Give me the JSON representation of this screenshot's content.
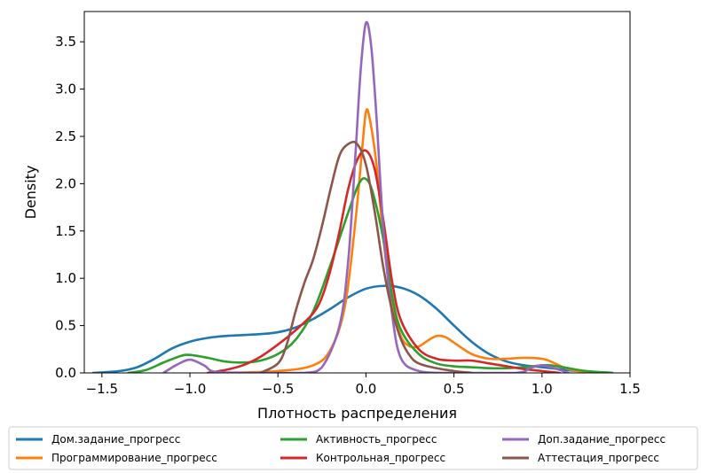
{
  "chart_data": {
    "type": "line",
    "title": "",
    "xlabel": "Плотность распределения",
    "ylabel": "Density",
    "xlim": [
      -1.6,
      1.5
    ],
    "ylim": [
      0.0,
      3.82
    ],
    "xticks": [
      -1.5,
      -1.0,
      -0.5,
      0.0,
      0.5,
      1.0,
      1.5
    ],
    "xtick_labels": [
      "−1.5",
      "−1.0",
      "−0.5",
      "0.0",
      "0.5",
      "1.0",
      "1.5"
    ],
    "yticks": [
      0.0,
      0.5,
      1.0,
      1.5,
      2.0,
      2.5,
      3.0,
      3.5
    ],
    "ytick_labels": [
      "0.0",
      "0.5",
      "1.0",
      "1.5",
      "2.0",
      "2.5",
      "3.0",
      "3.5"
    ],
    "grid": false,
    "legend_position": "bottom",
    "series": [
      {
        "name": "Дом.задание_прогресс",
        "color": "#1f77b4",
        "points": [
          [
            -1.55,
            0.0
          ],
          [
            -1.4,
            0.02
          ],
          [
            -1.3,
            0.06
          ],
          [
            -1.2,
            0.15
          ],
          [
            -1.1,
            0.26
          ],
          [
            -1.0,
            0.33
          ],
          [
            -0.9,
            0.37
          ],
          [
            -0.8,
            0.39
          ],
          [
            -0.7,
            0.4
          ],
          [
            -0.6,
            0.41
          ],
          [
            -0.5,
            0.43
          ],
          [
            -0.4,
            0.48
          ],
          [
            -0.3,
            0.57
          ],
          [
            -0.2,
            0.68
          ],
          [
            -0.1,
            0.8
          ],
          [
            0.0,
            0.89
          ],
          [
            0.1,
            0.92
          ],
          [
            0.2,
            0.9
          ],
          [
            0.3,
            0.82
          ],
          [
            0.4,
            0.68
          ],
          [
            0.5,
            0.5
          ],
          [
            0.6,
            0.33
          ],
          [
            0.7,
            0.2
          ],
          [
            0.8,
            0.12
          ],
          [
            0.9,
            0.08
          ],
          [
            1.0,
            0.06
          ],
          [
            1.1,
            0.04
          ],
          [
            1.2,
            0.02
          ],
          [
            1.4,
            0.0
          ]
        ]
      },
      {
        "name": "Программирование_прогресс",
        "color": "#ff7f0e",
        "points": [
          [
            -0.8,
            0.0
          ],
          [
            -0.5,
            0.02
          ],
          [
            -0.3,
            0.08
          ],
          [
            -0.2,
            0.25
          ],
          [
            -0.12,
            0.7
          ],
          [
            -0.06,
            1.6
          ],
          [
            -0.02,
            2.4
          ],
          [
            0.0,
            2.76
          ],
          [
            0.02,
            2.7
          ],
          [
            0.06,
            2.2
          ],
          [
            0.1,
            1.4
          ],
          [
            0.15,
            0.7
          ],
          [
            0.2,
            0.38
          ],
          [
            0.25,
            0.28
          ],
          [
            0.3,
            0.28
          ],
          [
            0.35,
            0.34
          ],
          [
            0.4,
            0.39
          ],
          [
            0.45,
            0.38
          ],
          [
            0.5,
            0.32
          ],
          [
            0.6,
            0.2
          ],
          [
            0.7,
            0.15
          ],
          [
            0.8,
            0.15
          ],
          [
            0.9,
            0.16
          ],
          [
            1.0,
            0.15
          ],
          [
            1.05,
            0.12
          ],
          [
            1.15,
            0.04
          ],
          [
            1.25,
            0.01
          ],
          [
            1.3,
            0.0
          ]
        ]
      },
      {
        "name": "Активность_прогресс",
        "color": "#2ca02c",
        "points": [
          [
            -1.35,
            0.0
          ],
          [
            -1.25,
            0.03
          ],
          [
            -1.15,
            0.11
          ],
          [
            -1.05,
            0.18
          ],
          [
            -1.0,
            0.19
          ],
          [
            -0.9,
            0.16
          ],
          [
            -0.8,
            0.12
          ],
          [
            -0.7,
            0.11
          ],
          [
            -0.6,
            0.13
          ],
          [
            -0.5,
            0.2
          ],
          [
            -0.4,
            0.35
          ],
          [
            -0.3,
            0.65
          ],
          [
            -0.2,
            1.15
          ],
          [
            -0.1,
            1.7
          ],
          [
            -0.04,
            2.0
          ],
          [
            0.0,
            2.05
          ],
          [
            0.04,
            1.9
          ],
          [
            0.1,
            1.4
          ],
          [
            0.15,
            0.8
          ],
          [
            0.2,
            0.45
          ],
          [
            0.3,
            0.2
          ],
          [
            0.4,
            0.1
          ],
          [
            0.5,
            0.07
          ],
          [
            0.6,
            0.06
          ],
          [
            0.7,
            0.05
          ],
          [
            0.8,
            0.05
          ],
          [
            0.9,
            0.06
          ],
          [
            1.0,
            0.08
          ],
          [
            1.05,
            0.08
          ],
          [
            1.15,
            0.05
          ],
          [
            1.25,
            0.02
          ],
          [
            1.4,
            0.0
          ]
        ]
      },
      {
        "name": "Контрольная_прогресс",
        "color": "#d62728",
        "points": [
          [
            -0.9,
            0.0
          ],
          [
            -0.8,
            0.03
          ],
          [
            -0.7,
            0.08
          ],
          [
            -0.6,
            0.17
          ],
          [
            -0.5,
            0.3
          ],
          [
            -0.4,
            0.45
          ],
          [
            -0.3,
            0.63
          ],
          [
            -0.25,
            0.8
          ],
          [
            -0.2,
            1.1
          ],
          [
            -0.15,
            1.5
          ],
          [
            -0.1,
            1.95
          ],
          [
            -0.05,
            2.25
          ],
          [
            0.0,
            2.35
          ],
          [
            0.05,
            2.15
          ],
          [
            0.1,
            1.6
          ],
          [
            0.15,
            0.95
          ],
          [
            0.2,
            0.55
          ],
          [
            0.3,
            0.25
          ],
          [
            0.4,
            0.15
          ],
          [
            0.5,
            0.13
          ],
          [
            0.6,
            0.13
          ],
          [
            0.7,
            0.1
          ],
          [
            0.8,
            0.07
          ],
          [
            0.9,
            0.04
          ],
          [
            1.0,
            0.02
          ],
          [
            1.1,
            0.0
          ]
        ]
      },
      {
        "name": "Доп.задание_прогресс",
        "color": "#9467bd",
        "points": [
          [
            -1.15,
            0.0
          ],
          [
            -1.08,
            0.08
          ],
          [
            -1.0,
            0.14
          ],
          [
            -0.92,
            0.08
          ],
          [
            -0.85,
            0.01
          ],
          [
            -0.6,
            0.0
          ],
          [
            -0.35,
            0.0
          ],
          [
            -0.25,
            0.06
          ],
          [
            -0.15,
            0.5
          ],
          [
            -0.1,
            1.2
          ],
          [
            -0.06,
            2.3
          ],
          [
            -0.03,
            3.2
          ],
          [
            0.0,
            3.7
          ],
          [
            0.03,
            3.45
          ],
          [
            0.06,
            2.7
          ],
          [
            0.1,
            1.5
          ],
          [
            0.15,
            0.6
          ],
          [
            0.2,
            0.15
          ],
          [
            0.3,
            0.02
          ],
          [
            0.45,
            0.0
          ],
          [
            0.85,
            0.0
          ],
          [
            0.93,
            0.05
          ],
          [
            1.0,
            0.08
          ],
          [
            1.07,
            0.05
          ],
          [
            1.15,
            0.0
          ]
        ]
      },
      {
        "name": "Аттестация_прогресс",
        "color": "#8c564b",
        "points": [
          [
            -0.6,
            0.0
          ],
          [
            -0.5,
            0.1
          ],
          [
            -0.45,
            0.3
          ],
          [
            -0.4,
            0.65
          ],
          [
            -0.35,
            0.95
          ],
          [
            -0.3,
            1.2
          ],
          [
            -0.25,
            1.55
          ],
          [
            -0.2,
            1.95
          ],
          [
            -0.15,
            2.3
          ],
          [
            -0.1,
            2.42
          ],
          [
            -0.05,
            2.42
          ],
          [
            0.0,
            2.2
          ],
          [
            0.05,
            1.7
          ],
          [
            0.1,
            1.1
          ],
          [
            0.15,
            0.65
          ],
          [
            0.2,
            0.35
          ],
          [
            0.25,
            0.18
          ],
          [
            0.3,
            0.1
          ],
          [
            0.4,
            0.05
          ],
          [
            0.5,
            0.02
          ],
          [
            0.6,
            0.0
          ]
        ]
      }
    ]
  }
}
